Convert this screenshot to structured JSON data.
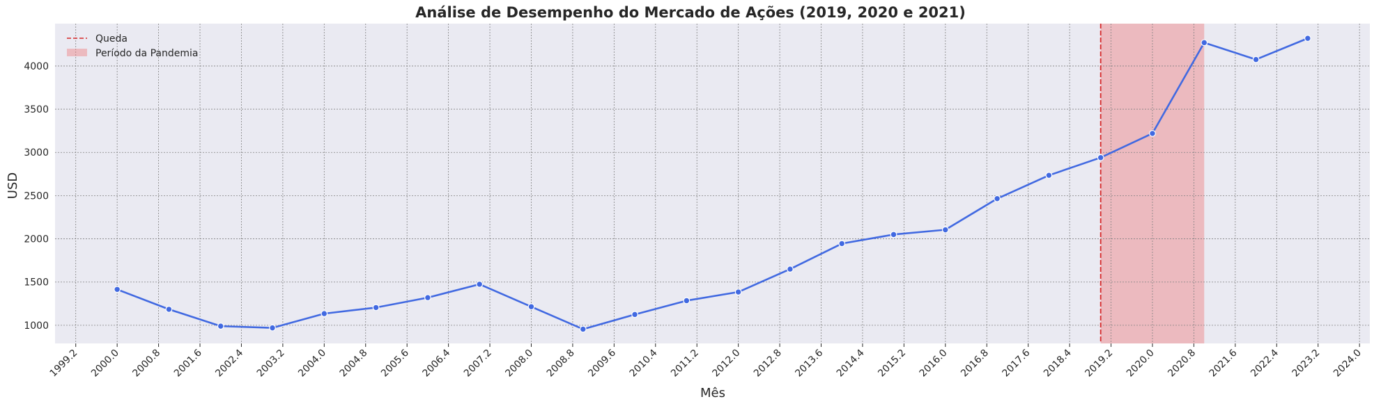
{
  "chart_data": {
    "type": "line",
    "title": "Análise de Desempenho do Mercado de Ações (2019, 2020 e 2021)",
    "xlabel": "Mês",
    "ylabel": "USD",
    "xlim": [
      1998.8,
      2024.2
    ],
    "ylim": [
      790,
      4490
    ],
    "x_ticks": [
      1999.2,
      2000.0,
      2000.8,
      2001.6,
      2002.4,
      2003.2,
      2004.0,
      2004.8,
      2005.6,
      2006.4,
      2007.2,
      2008.0,
      2008.8,
      2009.6,
      2010.4,
      2011.2,
      2012.0,
      2012.8,
      2013.6,
      2014.4,
      2015.2,
      2016.0,
      2016.8,
      2017.6,
      2018.4,
      2019.2,
      2020.0,
      2020.8,
      2021.6,
      2022.4,
      2023.2,
      2024.0
    ],
    "x_tick_labels": [
      "1999.2",
      "2000.0",
      "2000.8",
      "2001.6",
      "2002.4",
      "2003.2",
      "2004.0",
      "2004.8",
      "2005.6",
      "2006.4",
      "2007.2",
      "2008.0",
      "2008.8",
      "2009.6",
      "2010.4",
      "2011.2",
      "2012.0",
      "2012.8",
      "2013.6",
      "2014.4",
      "2015.2",
      "2016.0",
      "2016.8",
      "2017.6",
      "2018.4",
      "2019.2",
      "2020.0",
      "2020.8",
      "2021.6",
      "2022.4",
      "2023.2",
      "2024.0"
    ],
    "y_ticks": [
      1000,
      1500,
      2000,
      2500,
      3000,
      3500,
      4000
    ],
    "y_tick_labels": [
      "1000",
      "1500",
      "2000",
      "2500",
      "3000",
      "3500",
      "4000"
    ],
    "series": [
      {
        "x": [
          2000,
          2001,
          2002,
          2003,
          2004,
          2005,
          2006,
          2007,
          2008,
          2009,
          2010,
          2011,
          2012,
          2013,
          2014,
          2015,
          2016,
          2017,
          2018,
          2019,
          2020,
          2021,
          2022,
          2023
        ],
        "values": [
          1415,
          1185,
          990,
          970,
          1135,
          1205,
          1320,
          1475,
          1215,
          955,
          1125,
          1285,
          1385,
          1650,
          1945,
          2050,
          2105,
          2465,
          2735,
          2940,
          3220,
          4270,
          4075,
          4320
        ],
        "color": "#4169e1"
      }
    ],
    "vline": {
      "x": 2019,
      "label": "Queda",
      "color": "#d62728"
    },
    "span": {
      "x0": 2019,
      "x1": 2021,
      "label": "Período da Pandemia",
      "color": "#f08080"
    },
    "grid": true,
    "legend_position": "top-left",
    "background": "#eaeaf2"
  }
}
